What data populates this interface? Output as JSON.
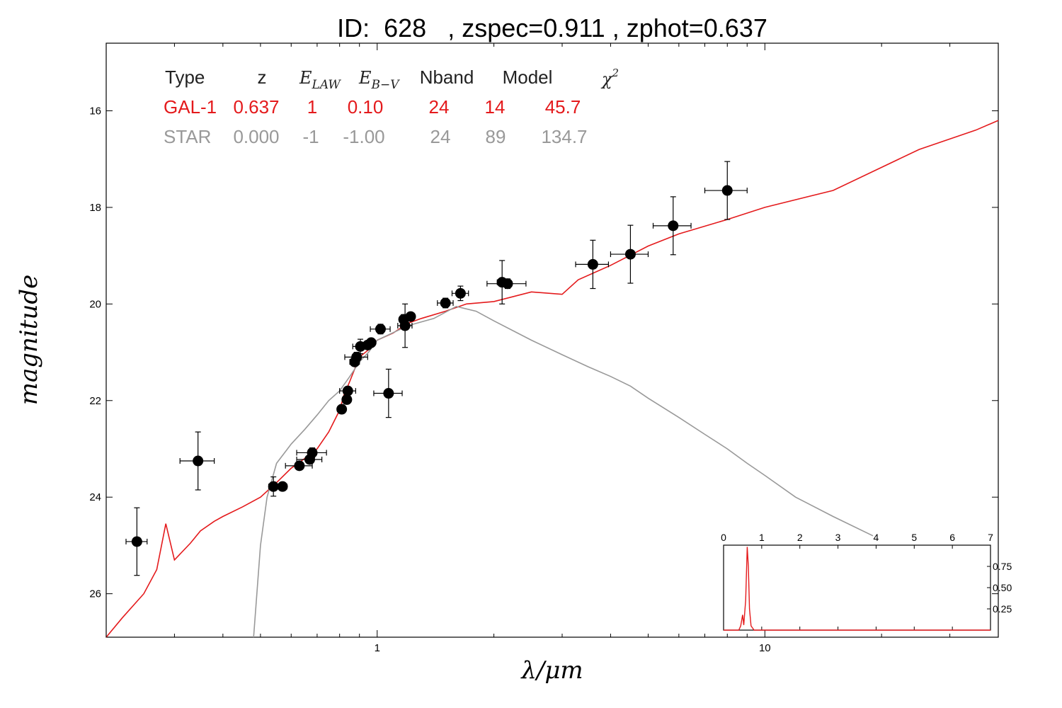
{
  "colors": {
    "galaxy": "#e41a1c",
    "star": "#999999",
    "points": "#000000",
    "text_gray": "#999999"
  },
  "chart_data": {
    "type": "scatter",
    "title": "ID:  628   , zspec=0.911 , zphot=0.637",
    "xlabel": "λ/μm",
    "ylabel": "magnitude",
    "x_scale": "log",
    "xlim": [
      0.2,
      40
    ],
    "ylim": [
      26.9,
      14.6
    ],
    "y_inverted": true,
    "x_ticks": [
      {
        "v": 1,
        "label": "1"
      },
      {
        "v": 10,
        "label": "10"
      }
    ],
    "y_ticks": [
      {
        "v": 16,
        "label": "16"
      },
      {
        "v": 18,
        "label": "18"
      },
      {
        "v": 20,
        "label": "20"
      },
      {
        "v": 22,
        "label": "22"
      },
      {
        "v": 24,
        "label": "24"
      },
      {
        "v": 26,
        "label": "26"
      }
    ],
    "legend_table": {
      "headers": [
        "Type",
        "z",
        "E_LAW",
        "E_B-V",
        "Nband",
        "Model",
        "χ²"
      ],
      "rows": [
        {
          "Type": "GAL-1",
          "z": "0.637",
          "E_LAW": "1",
          "E_B-V": "0.10",
          "Nband": "24",
          "Model": "14",
          "chi2": "45.7"
        },
        {
          "Type": "STAR",
          "z": "0.000",
          "E_LAW": "-1",
          "E_B-V": "-1.00",
          "Nband": "24",
          "Model": "89",
          "chi2": "134.7"
        }
      ]
    },
    "observations": [
      {
        "x": 0.24,
        "y": 24.92,
        "xerr": 0.015,
        "yerr": 0.7
      },
      {
        "x": 0.345,
        "y": 23.25,
        "xerr": 0.035,
        "yerr": 0.6
      },
      {
        "x": 0.54,
        "y": 23.78,
        "xerr": 0.015,
        "yerr": 0.2
      },
      {
        "x": 0.57,
        "y": 23.78,
        "xerr": 0.015,
        "yerr": 0.05
      },
      {
        "x": 0.63,
        "y": 23.35,
        "xerr": 0.05,
        "yerr": 0.08
      },
      {
        "x": 0.67,
        "y": 23.22,
        "xerr": 0.05,
        "yerr": 0.08
      },
      {
        "x": 0.68,
        "y": 23.08,
        "xerr": 0.06,
        "yerr": 0.1
      },
      {
        "x": 0.81,
        "y": 22.18,
        "xerr": 0.02,
        "yerr": 0.05
      },
      {
        "x": 0.835,
        "y": 21.98,
        "xerr": 0.02,
        "yerr": 0.05
      },
      {
        "x": 0.84,
        "y": 21.8,
        "xerr": 0.04,
        "yerr": 0.08
      },
      {
        "x": 0.875,
        "y": 21.2,
        "xerr": 0.025,
        "yerr": 0.08
      },
      {
        "x": 0.885,
        "y": 21.1,
        "xerr": 0.06,
        "yerr": 0.1
      },
      {
        "x": 0.905,
        "y": 20.88,
        "xerr": 0.04,
        "yerr": 0.15
      },
      {
        "x": 0.945,
        "y": 20.85,
        "xerr": 0.03,
        "yerr": 0.08
      },
      {
        "x": 0.965,
        "y": 20.8,
        "xerr": 0.02,
        "yerr": 0.05
      },
      {
        "x": 1.02,
        "y": 20.52,
        "xerr": 0.06,
        "yerr": 0.1
      },
      {
        "x": 1.07,
        "y": 21.85,
        "xerr": 0.09,
        "yerr": 0.5
      },
      {
        "x": 1.17,
        "y": 20.32,
        "xerr": 0.02,
        "yerr": 0.1
      },
      {
        "x": 1.18,
        "y": 20.45,
        "xerr": 0.05,
        "yerr": 0.45
      },
      {
        "x": 1.22,
        "y": 20.26,
        "xerr": 0.02,
        "yerr": 0.08
      },
      {
        "x": 1.5,
        "y": 19.98,
        "xerr": 0.07,
        "yerr": 0.1
      },
      {
        "x": 1.64,
        "y": 19.78,
        "xerr": 0.08,
        "yerr": 0.15
      },
      {
        "x": 2.1,
        "y": 19.55,
        "xerr": 0.06,
        "yerr": 0.45
      },
      {
        "x": 2.17,
        "y": 19.58,
        "xerr": 0.25,
        "yerr": 0.1
      },
      {
        "x": 3.6,
        "y": 19.18,
        "xerr": 0.35,
        "yerr": 0.5
      },
      {
        "x": 4.5,
        "y": 18.97,
        "xerr": 0.5,
        "yerr": 0.6
      },
      {
        "x": 5.8,
        "y": 18.38,
        "xerr": 0.65,
        "yerr": 0.6
      },
      {
        "x": 8.0,
        "y": 17.65,
        "xerr": 1.0,
        "yerr": 0.6
      }
    ],
    "series": [
      {
        "type": "line",
        "color": "#e41a1c",
        "points": [
          [
            0.2,
            26.95
          ],
          [
            0.22,
            26.5
          ],
          [
            0.25,
            26.0
          ],
          [
            0.27,
            25.5
          ],
          [
            0.285,
            24.55
          ],
          [
            0.3,
            25.3
          ],
          [
            0.33,
            24.95
          ],
          [
            0.35,
            24.7
          ],
          [
            0.38,
            24.5
          ],
          [
            0.4,
            24.4
          ],
          [
            0.45,
            24.2
          ],
          [
            0.5,
            24.0
          ],
          [
            0.55,
            23.7
          ],
          [
            0.6,
            23.4
          ],
          [
            0.65,
            23.2
          ],
          [
            0.7,
            23.0
          ],
          [
            0.75,
            22.65
          ],
          [
            0.8,
            22.2
          ],
          [
            0.82,
            21.9
          ],
          [
            0.85,
            21.6
          ],
          [
            0.88,
            21.3
          ],
          [
            0.9,
            21.1
          ],
          [
            0.95,
            20.95
          ],
          [
            1.0,
            20.75
          ],
          [
            1.1,
            20.6
          ],
          [
            1.2,
            20.4
          ],
          [
            1.3,
            20.3
          ],
          [
            1.5,
            20.15
          ],
          [
            1.7,
            20.0
          ],
          [
            2.0,
            19.95
          ],
          [
            2.5,
            19.75
          ],
          [
            3.0,
            19.8
          ],
          [
            3.3,
            19.5
          ],
          [
            4.0,
            19.2
          ],
          [
            5.0,
            18.8
          ],
          [
            6.0,
            18.55
          ],
          [
            8.0,
            18.25
          ],
          [
            10.0,
            18.0
          ],
          [
            15.0,
            17.65
          ],
          [
            25.0,
            16.8
          ],
          [
            35.0,
            16.4
          ],
          [
            40.0,
            16.2
          ]
        ]
      },
      {
        "type": "line",
        "color": "#999999",
        "points": [
          [
            0.48,
            26.95
          ],
          [
            0.5,
            25.0
          ],
          [
            0.52,
            24.0
          ],
          [
            0.55,
            23.3
          ],
          [
            0.6,
            22.9
          ],
          [
            0.65,
            22.6
          ],
          [
            0.7,
            22.3
          ],
          [
            0.75,
            22.0
          ],
          [
            0.8,
            21.8
          ],
          [
            0.85,
            21.5
          ],
          [
            0.9,
            21.2
          ],
          [
            0.95,
            21.0
          ],
          [
            1.0,
            20.75
          ],
          [
            1.2,
            20.45
          ],
          [
            1.4,
            20.3
          ],
          [
            1.6,
            20.05
          ],
          [
            1.8,
            20.15
          ],
          [
            2.0,
            20.35
          ],
          [
            2.5,
            20.75
          ],
          [
            3.0,
            21.05
          ],
          [
            3.5,
            21.3
          ],
          [
            4.0,
            21.5
          ],
          [
            4.5,
            21.7
          ],
          [
            5.0,
            21.95
          ],
          [
            6.0,
            22.35
          ],
          [
            7.0,
            22.7
          ],
          [
            8.0,
            23.0
          ],
          [
            9.0,
            23.3
          ],
          [
            10.0,
            23.55
          ],
          [
            12.0,
            24.0
          ],
          [
            15.0,
            24.4
          ],
          [
            19.0,
            24.8
          ]
        ]
      }
    ],
    "inset": {
      "type": "line",
      "xlim": [
        0,
        7
      ],
      "ylim": [
        0,
        1.0
      ],
      "x_ticks": [
        {
          "v": 0,
          "label": "0"
        },
        {
          "v": 1,
          "label": "1"
        },
        {
          "v": 2,
          "label": "2"
        },
        {
          "v": 3,
          "label": "3"
        },
        {
          "v": 4,
          "label": "4"
        },
        {
          "v": 5,
          "label": "5"
        },
        {
          "v": 6,
          "label": "6"
        },
        {
          "v": 7,
          "label": "7"
        }
      ],
      "y_ticks": [
        {
          "v": 0.25,
          "label": "0.25"
        },
        {
          "v": 0.5,
          "label": "0.50"
        },
        {
          "v": 0.75,
          "label": "0.75"
        }
      ],
      "color": "#e41a1c",
      "points": [
        [
          0,
          0
        ],
        [
          0.4,
          0
        ],
        [
          0.45,
          0.05
        ],
        [
          0.5,
          0.18
        ],
        [
          0.53,
          0.06
        ],
        [
          0.58,
          0.35
        ],
        [
          0.62,
          0.98
        ],
        [
          0.65,
          0.75
        ],
        [
          0.68,
          0.25
        ],
        [
          0.72,
          0.05
        ],
        [
          0.8,
          0
        ],
        [
          7,
          0
        ]
      ]
    }
  }
}
